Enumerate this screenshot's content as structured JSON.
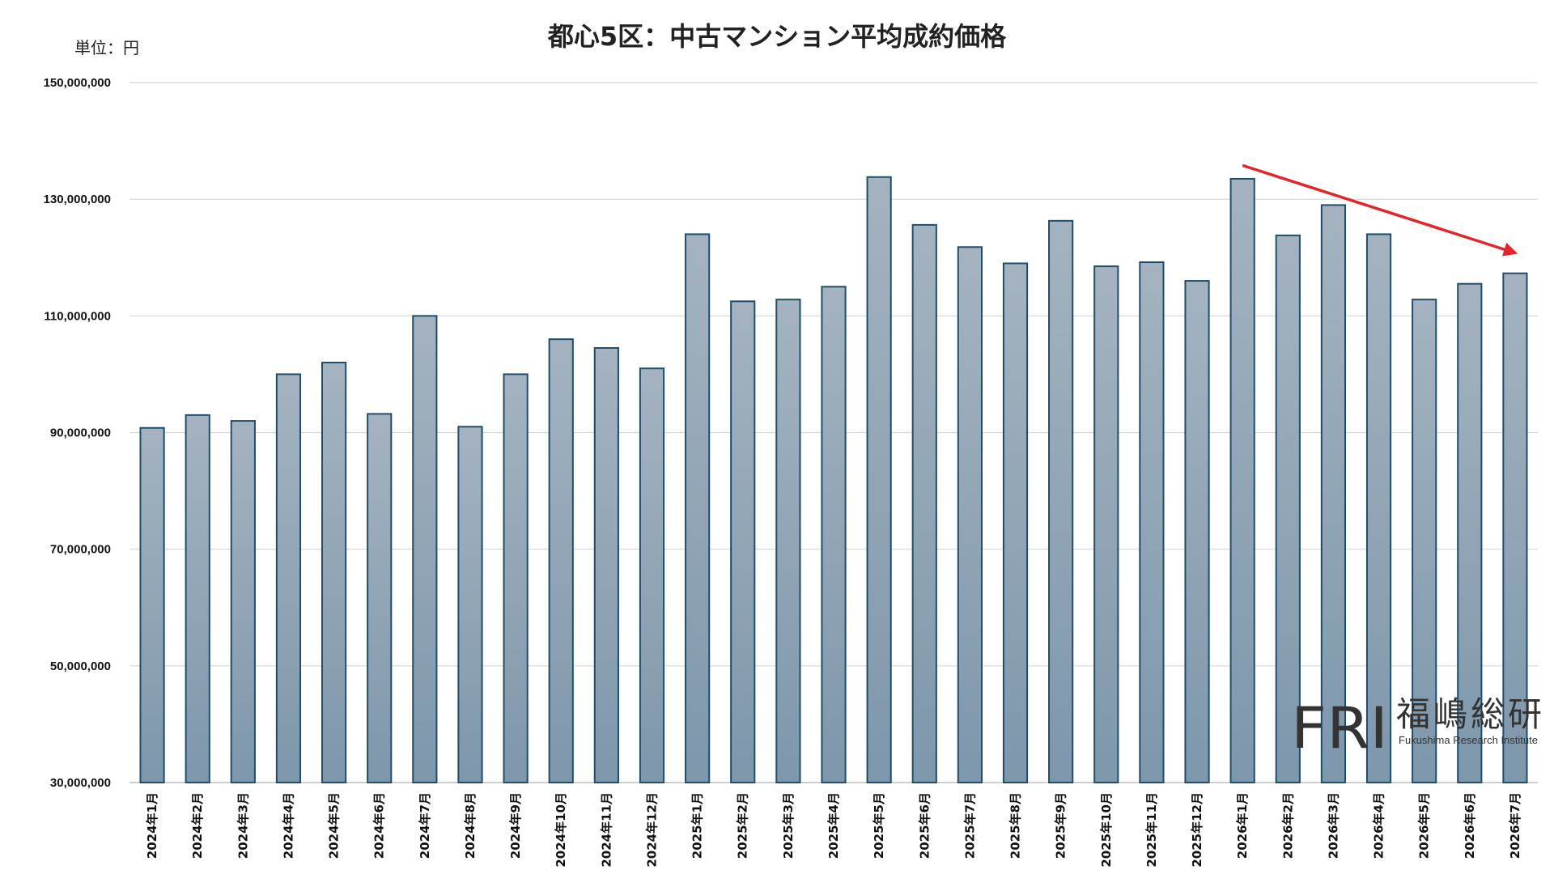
{
  "chart_data": {
    "type": "bar",
    "title": "都心5区：中古マンション平均成約価格",
    "unit_label": "単位：円",
    "ylim": [
      30000000,
      150000000
    ],
    "yticks": [
      30000000,
      50000000,
      70000000,
      90000000,
      110000000,
      130000000,
      150000000
    ],
    "ytick_labels": [
      "30,000,000",
      "50,000,000",
      "70,000,000",
      "90,000,000",
      "110,000,000",
      "130,000,000",
      "150,000,000"
    ],
    "grid": true,
    "categories": [
      "2024年1月",
      "2024年2月",
      "2024年3月",
      "2024年4月",
      "2024年5月",
      "2024年6月",
      "2024年7月",
      "2024年8月",
      "2024年9月",
      "2024年10月",
      "2024年11月",
      "2024年12月",
      "2025年1月",
      "2025年2月",
      "2025年3月",
      "2025年4月",
      "2025年5月",
      "2025年6月",
      "2025年7月",
      "2025年8月",
      "2025年9月",
      "2025年10月",
      "2025年11月",
      "2025年12月",
      "2026年1月",
      "2026年2月",
      "2026年3月",
      "2026年4月",
      "2026年5月",
      "2026年6月",
      "2026年7月"
    ],
    "values": [
      90800000,
      93000000,
      92000000,
      100000000,
      102000000,
      93200000,
      110000000,
      91000000,
      100000000,
      106000000,
      104500000,
      101000000,
      124000000,
      112500000,
      112800000,
      115000000,
      133800000,
      125600000,
      121800000,
      119000000,
      126300000,
      118500000,
      119200000,
      116000000,
      133500000,
      123800000,
      129000000,
      124000000,
      112800000,
      115500000,
      117300000
    ],
    "annotation": {
      "type": "trend-arrow",
      "color": "#e0262a",
      "from_category": "2026年1月",
      "to_category": "2026年7月",
      "from_value": 135800000,
      "to_value": 120800000
    },
    "bar_colors": {
      "top": "#a5b3c0",
      "bottom": "#7e97ac",
      "edge": "#1f4e6b"
    }
  },
  "logo": {
    "mark": "FRI",
    "name": "福嶋総研",
    "subtitle": "Fukushima Research Institute"
  }
}
